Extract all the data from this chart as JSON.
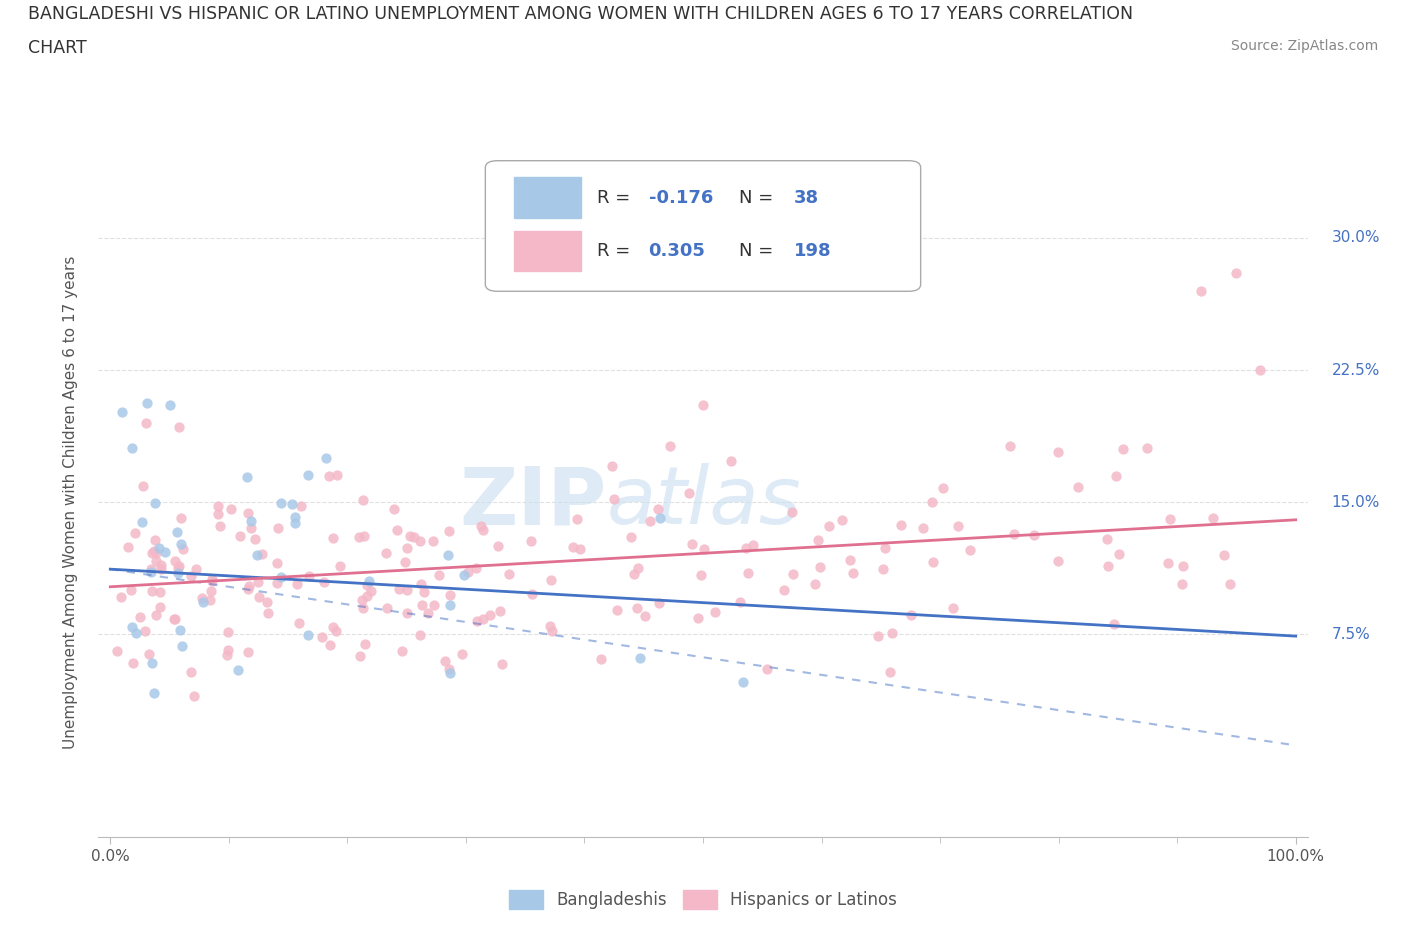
{
  "title_line1": "BANGLADESHI VS HISPANIC OR LATINO UNEMPLOYMENT AMONG WOMEN WITH CHILDREN AGES 6 TO 17 YEARS CORRELATION",
  "title_line2": "CHART",
  "source_text": "Source: ZipAtlas.com",
  "watermark_zip": "ZIP",
  "watermark_atlas": "atlas",
  "ylabel": "Unemployment Among Women with Children Ages 6 to 17 years",
  "xlim_min": 0,
  "xlim_max": 100,
  "ylim_min": -4,
  "ylim_max": 34,
  "ytick_vals": [
    7.5,
    15.0,
    22.5,
    30.0
  ],
  "ytick_labels": [
    "7.5%",
    "15.0%",
    "22.5%",
    "30.0%"
  ],
  "xtick_left_label": "0.0%",
  "xtick_right_label": "100.0%",
  "blue_scatter_color": "#a8c8e8",
  "pink_scatter_color": "#f4b8c8",
  "blue_line_color": "#4472c4",
  "pink_line_color": "#e07090",
  "right_axis_color": "#4472c4",
  "grid_color": "#e0e0e0",
  "grid_linestyle": "--",
  "blue_line_intercept": 11.2,
  "blue_line_slope": -0.038,
  "pink_line_intercept": 10.2,
  "pink_line_slope": 0.038,
  "R_blue": -0.176,
  "N_blue": 38,
  "R_pink": 0.305,
  "N_pink": 198,
  "legend_box_color": "#ffffff",
  "legend_border_color": "#aaaaaa",
  "legend_text_color": "#333333",
  "legend_number_color": "#4472c4",
  "bottom_legend_color": "#555555",
  "title_color": "#333333",
  "source_color": "#888888",
  "ylabel_color": "#555555",
  "background_color": "#ffffff",
  "watermark_color": "#c8dff0",
  "scatter_size": 55,
  "scatter_alpha": 0.85
}
